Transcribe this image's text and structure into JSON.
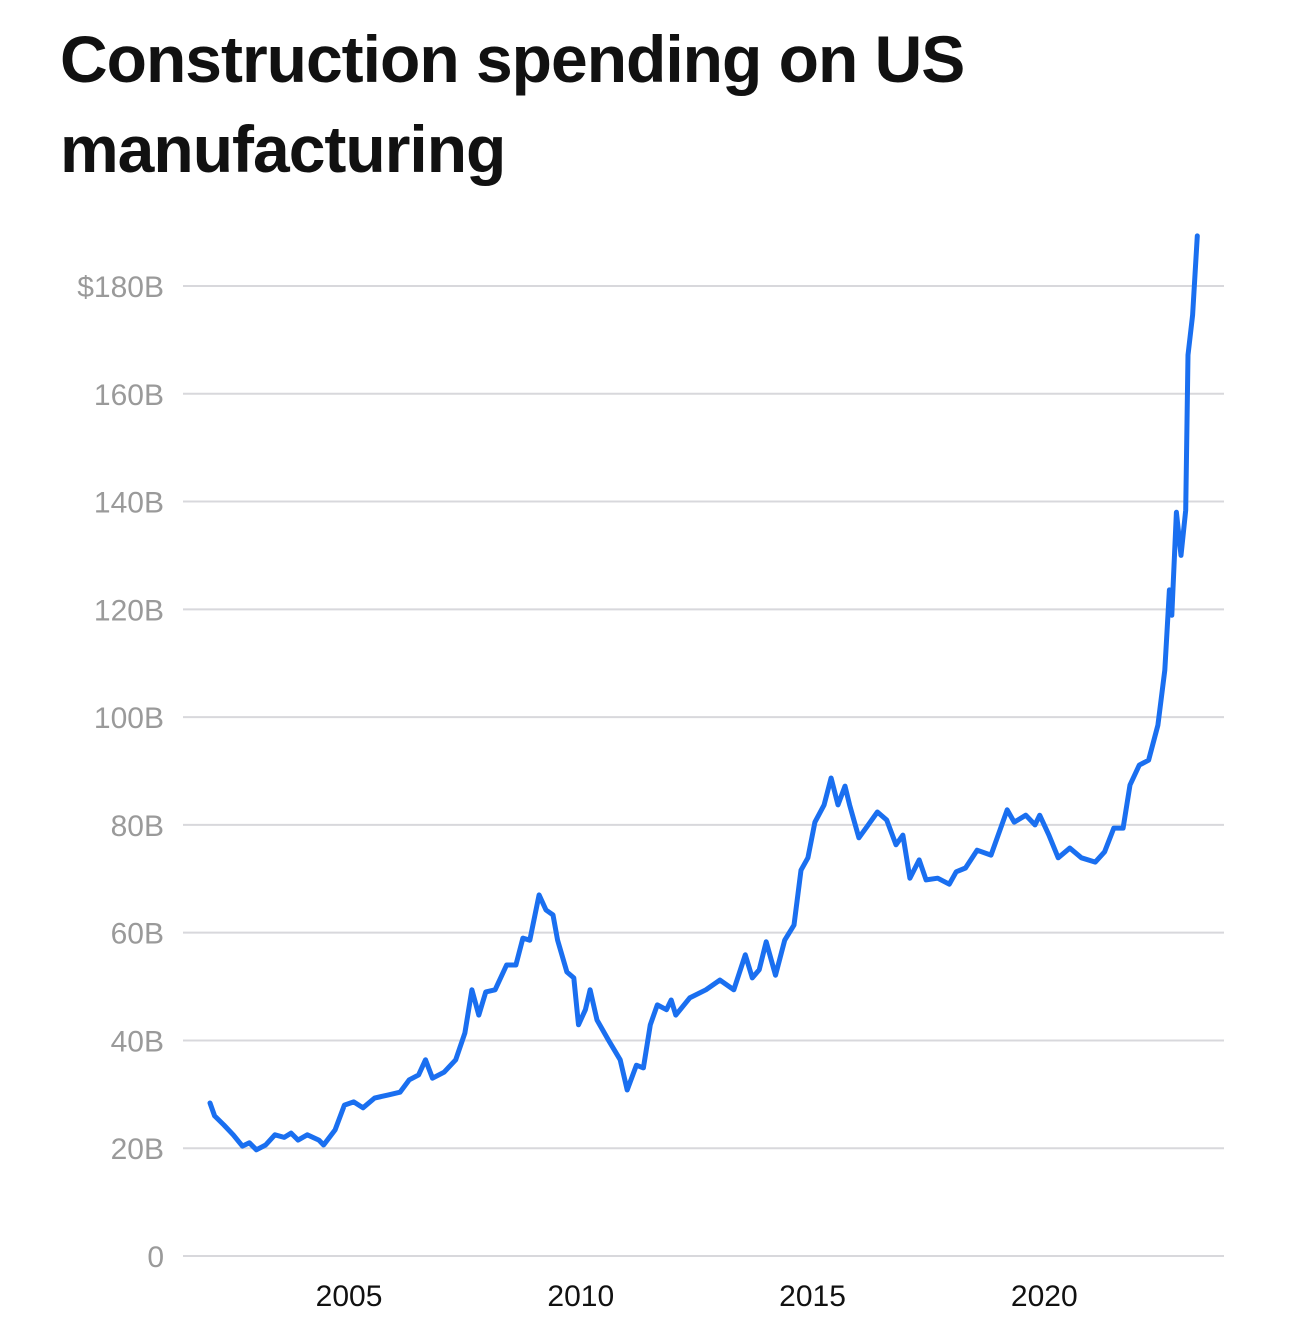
{
  "chart_data": {
    "type": "line",
    "title": "Construction spending on US manufacturing",
    "xlabel": "",
    "ylabel": "",
    "xlim": [
      2002,
      2023.35
    ],
    "ylim": [
      0,
      190
    ],
    "grid": true,
    "line_color": "#1a6ff0",
    "x_ticks": [
      {
        "value": 2005,
        "label": "2005"
      },
      {
        "value": 2010,
        "label": "2010"
      },
      {
        "value": 2015,
        "label": "2015"
      },
      {
        "value": 2020,
        "label": "2020"
      }
    ],
    "y_ticks": [
      {
        "value": 0,
        "label": "0"
      },
      {
        "value": 20,
        "label": "20B"
      },
      {
        "value": 40,
        "label": "40B"
      },
      {
        "value": 60,
        "label": "60B"
      },
      {
        "value": 80,
        "label": "80B"
      },
      {
        "value": 100,
        "label": "100B"
      },
      {
        "value": 120,
        "label": "120B"
      },
      {
        "value": 140,
        "label": "140B"
      },
      {
        "value": 160,
        "label": "160B"
      },
      {
        "value": 180,
        "label": "$180B"
      }
    ],
    "series": [
      {
        "x": [
          2002.0,
          2002.1,
          2002.3,
          2002.5,
          2002.7,
          2002.85,
          2003.0,
          2003.2,
          2003.4,
          2003.6,
          2003.75,
          2003.9,
          2004.1,
          2004.35,
          2004.45,
          2004.7,
          2004.9,
          2005.1,
          2005.3,
          2005.55,
          2005.85,
          2006.1,
          2006.3,
          2006.5,
          2006.65,
          2006.8,
          2007.05,
          2007.3,
          2007.5,
          2007.65,
          2007.8,
          2007.95,
          2008.15,
          2008.4,
          2008.6,
          2008.75,
          2008.9,
          2009.1,
          2009.25,
          2009.4,
          2009.5,
          2009.7,
          2009.85,
          2009.95,
          2010.1,
          2010.2,
          2010.35,
          2010.6,
          2010.85,
          2011.0,
          2011.2,
          2011.35,
          2011.5,
          2011.65,
          2011.85,
          2011.95,
          2012.05,
          2012.35,
          2012.7,
          2013.0,
          2013.3,
          2013.55,
          2013.7,
          2013.85,
          2014.0,
          2014.2,
          2014.4,
          2014.6,
          2014.75,
          2014.9,
          2015.05,
          2015.25,
          2015.4,
          2015.55,
          2015.7,
          2015.8,
          2016.0,
          2016.2,
          2016.4,
          2016.6,
          2016.8,
          2016.95,
          2017.1,
          2017.3,
          2017.45,
          2017.7,
          2017.95,
          2018.1,
          2018.3,
          2018.55,
          2018.85,
          2019.1,
          2019.2,
          2019.35,
          2019.6,
          2019.8,
          2019.9,
          2020.1,
          2020.3,
          2020.55,
          2020.8,
          2021.1,
          2021.3,
          2021.5,
          2021.7,
          2021.85,
          2022.05,
          2022.25,
          2022.45,
          2022.6,
          2022.7,
          2022.75,
          2022.85,
          2022.95,
          2023.05,
          2023.1,
          2023.2,
          2023.3
        ],
        "values": [
          28.4,
          26,
          24.3,
          22.5,
          20.4,
          21,
          19.7,
          20.6,
          22.5,
          22,
          22.8,
          21.5,
          22.5,
          21.5,
          20.6,
          23.4,
          28,
          28.6,
          27.5,
          29.3,
          29.9,
          30.4,
          32.7,
          33.6,
          36.4,
          33,
          34.1,
          36.4,
          41.4,
          49.4,
          44.7,
          49,
          49.4,
          54,
          54,
          59,
          58.6,
          67,
          64.2,
          63.3,
          58.6,
          52.7,
          51.6,
          42.9,
          45.7,
          49.4,
          43.8,
          40,
          36.4,
          30.8,
          35.4,
          34.9,
          42.9,
          46.6,
          45.7,
          47.5,
          44.7,
          47.9,
          49.4,
          51.2,
          49.4,
          55.9,
          51.6,
          53.1,
          58.3,
          52.1,
          58.6,
          61.4,
          71.6,
          73.9,
          80.5,
          83.7,
          88.7,
          83.7,
          87.2,
          83.7,
          77.6,
          80,
          82.4,
          80.9,
          76.3,
          78.1,
          70.1,
          73.5,
          69.8,
          70.1,
          69,
          71.3,
          72,
          75.3,
          74.4,
          80.4,
          82.8,
          80.5,
          81.8,
          80,
          81.8,
          78.1,
          73.9,
          75.7,
          73.9,
          73.1,
          75,
          79.4,
          79.4,
          87.4,
          91.1,
          92,
          98.5,
          108.7,
          123.6,
          118.9,
          138,
          130,
          138.4,
          167.2,
          174.6,
          189.3
        ]
      }
    ]
  }
}
